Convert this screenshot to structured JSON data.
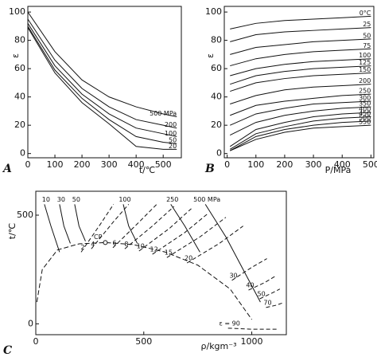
{
  "chart_data": [
    {
      "type": "line",
      "panel": "A",
      "xlabel": "t/℃",
      "ylabel": "ε",
      "xlim": [
        0,
        567
      ],
      "ylim": [
        -3,
        104
      ],
      "xticks": [
        0,
        100,
        200,
        300,
        400,
        500
      ],
      "yticks": [
        0,
        20,
        40,
        60,
        80,
        100
      ],
      "x": [
        0,
        100,
        200,
        300,
        400,
        500,
        550
      ],
      "series": [
        {
          "name": "500 MPa",
          "values": [
            100,
            72,
            52,
            40,
            33,
            28,
            26
          ]
        },
        {
          "name": "200",
          "values": [
            95,
            66,
            46,
            33,
            24,
            20,
            18
          ]
        },
        {
          "name": "100",
          "values": [
            92,
            62,
            42,
            28,
            18,
            14,
            12
          ]
        },
        {
          "name": "50",
          "values": [
            90,
            59,
            39,
            24,
            12,
            8,
            7
          ]
        },
        {
          "name": "20",
          "values": [
            89,
            57,
            36,
            21,
            5,
            3,
            3
          ]
        }
      ]
    },
    {
      "type": "line",
      "panel": "B",
      "xlabel": "P/MPa",
      "ylabel": "ε",
      "xlim": [
        -10,
        510
      ],
      "ylim": [
        -3,
        104
      ],
      "xticks": [
        0,
        100,
        200,
        300,
        400,
        500
      ],
      "yticks": [
        0,
        20,
        40,
        60,
        80,
        100
      ],
      "x": [
        10,
        100,
        200,
        300,
        400,
        500
      ],
      "series": [
        {
          "name": "0°C",
          "values": [
            88,
            92,
            94,
            95,
            96,
            97
          ]
        },
        {
          "name": "25",
          "values": [
            79,
            84,
            86,
            87,
            88,
            89
          ]
        },
        {
          "name": "50",
          "values": [
            70,
            75,
            77,
            79,
            80,
            81
          ]
        },
        {
          "name": "75",
          "values": [
            62,
            67,
            70,
            72,
            73,
            74
          ]
        },
        {
          "name": "100",
          "values": [
            55,
            60,
            63,
            65,
            66,
            67
          ]
        },
        {
          "name": "125",
          "values": [
            49,
            55,
            58,
            60,
            61,
            62
          ]
        },
        {
          "name": "150",
          "values": [
            44,
            50,
            53,
            55,
            56,
            57
          ]
        },
        {
          "name": "200",
          "values": [
            35,
            41,
            45,
            47,
            48,
            49
          ]
        },
        {
          "name": "250",
          "values": [
            27,
            34,
            37,
            39,
            41,
            42
          ]
        },
        {
          "name": "300",
          "values": [
            20,
            28,
            32,
            35,
            36,
            37
          ]
        },
        {
          "name": "350",
          "values": [
            13,
            22,
            27,
            30,
            32,
            33
          ]
        },
        {
          "name": "400",
          "values": [
            5,
            17,
            22,
            26,
            28,
            29
          ]
        },
        {
          "name": "450",
          "values": [
            3,
            14,
            19,
            23,
            25,
            26
          ]
        },
        {
          "name": "500",
          "values": [
            2,
            12,
            17,
            20,
            22,
            23
          ]
        },
        {
          "name": "550",
          "values": [
            2,
            10,
            15,
            18,
            19,
            20
          ]
        }
      ]
    },
    {
      "type": "line",
      "panel": "C",
      "xlabel": "ρ/kgm⁻³",
      "ylabel": "t/℃",
      "xlim": [
        0,
        1160
      ],
      "ylim": [
        -50,
        610
      ],
      "xticks": [
        0,
        500,
        1000
      ],
      "yticks": [
        0,
        500
      ],
      "annotations": [
        {
          "text": "CP",
          "x": 322,
          "y": 374
        }
      ],
      "series": [
        {
          "x": [
            5,
            30,
            100,
            200,
            322,
            450,
            600,
            750,
            900,
            1000
          ],
          "values": [
            100,
            250,
            340,
            368,
            374,
            365,
            330,
            270,
            160,
            20
          ],
          "dash": "6 3"
        },
        {
          "name": "10",
          "x": [
            40,
            70,
            110
          ],
          "values": [
            550,
            450,
            330
          ]
        },
        {
          "name": "30",
          "x": [
            110,
            130,
            160
          ],
          "values": [
            550,
            450,
            370
          ]
        },
        {
          "name": "50",
          "x": [
            180,
            200,
            230
          ],
          "values": [
            550,
            450,
            380
          ]
        },
        {
          "name": "100",
          "x": [
            405,
            430,
            470
          ],
          "values": [
            550,
            450,
            370
          ]
        },
        {
          "name": "250",
          "x": [
            625,
            690,
            760
          ],
          "values": [
            550,
            450,
            330
          ]
        },
        {
          "name": "500 MPa",
          "x": [
            785,
            880,
            1040
          ],
          "values": [
            550,
            400,
            100
          ]
        },
        {
          "name": "2",
          "x": [
            210,
            300,
            360
          ],
          "values": [
            330,
            460,
            550
          ],
          "dash": "5 3"
        },
        {
          "name": "4",
          "x": [
            257,
            360,
            430
          ],
          "values": [
            345,
            470,
            550
          ],
          "dash": "5 3"
        },
        {
          "name": "6",
          "x": [
            357,
            470,
            560
          ],
          "values": [
            350,
            460,
            550
          ],
          "dash": "5 3"
        },
        {
          "name": "8",
          "x": [
            412,
            540,
            640
          ],
          "values": [
            345,
            450,
            540
          ],
          "dash": "5 3"
        },
        {
          "name": "10",
          "x": [
            478,
            620,
            720
          ],
          "values": [
            335,
            440,
            530
          ],
          "dash": "5 3"
        },
        {
          "name": "12",
          "x": [
            540,
            690,
            800
          ],
          "values": [
            320,
            420,
            510
          ],
          "dash": "5 3"
        },
        {
          "name": "15",
          "x": [
            607,
            760,
            880
          ],
          "values": [
            305,
            400,
            490
          ],
          "dash": "5 3"
        },
        {
          "name": "20",
          "x": [
            700,
            850,
            960
          ],
          "values": [
            280,
            370,
            450
          ],
          "dash": "5 3"
        },
        {
          "name": "30",
          "x": [
            908,
            1000,
            1070
          ],
          "values": [
            200,
            260,
            300
          ],
          "dash": "5 3"
        },
        {
          "name": "40",
          "x": [
            985,
            1060,
            1110
          ],
          "values": [
            155,
            190,
            220
          ],
          "dash": "5 3"
        },
        {
          "name": "50",
          "x": [
            1037,
            1090,
            1130
          ],
          "values": [
            115,
            140,
            160
          ],
          "dash": "5 3"
        },
        {
          "name": "70",
          "x": [
            1066,
            1110,
            1140
          ],
          "values": [
            75,
            85,
            95
          ],
          "dash": "5 3"
        },
        {
          "name": "ε = 90",
          "x": [
            890,
            1000,
            1120
          ],
          "values": [
            -20,
            -25,
            -25
          ],
          "dash": "5 3"
        }
      ]
    }
  ]
}
